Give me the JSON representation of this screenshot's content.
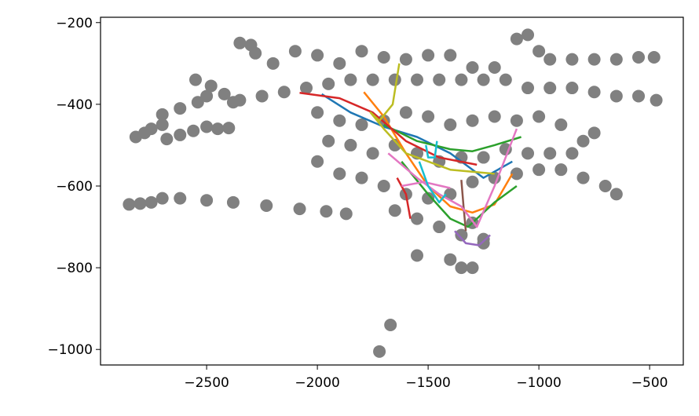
{
  "chart_data": {
    "type": "scatter",
    "xlim": [
      -2979,
      -348
    ],
    "ylim": [
      -1038,
      -187
    ],
    "xticks": [
      {
        "value": -2500,
        "label": "−2500"
      },
      {
        "value": -2000,
        "label": "−2000"
      },
      {
        "value": -1500,
        "label": "−1500"
      },
      {
        "value": -1000,
        "label": "−1000"
      },
      {
        "value": -500,
        "label": "−500"
      }
    ],
    "yticks": [
      {
        "value": -200,
        "label": "−200"
      },
      {
        "value": -400,
        "label": "−400"
      },
      {
        "value": -600,
        "label": "−600"
      },
      {
        "value": -800,
        "label": "−800"
      },
      {
        "value": -1000,
        "label": "−1000"
      }
    ],
    "series": [
      {
        "type": "scatter",
        "color": "#808080",
        "x": [
          -2850,
          -2800,
          -2750,
          -2700,
          -2620,
          -2500,
          -2380,
          -2230,
          -2080,
          -1960,
          -1870,
          -2820,
          -2780,
          -2750,
          -2700,
          -2680,
          -2620,
          -2560,
          -2500,
          -2450,
          -2400,
          -2700,
          -2620,
          -2540,
          -2500,
          -2550,
          -2480,
          -2420,
          -2380,
          -2350,
          -2300,
          -2280,
          -2200,
          -2100,
          -2000,
          -1900,
          -1800,
          -1700,
          -1600,
          -1500,
          -1400,
          -1300,
          -1200,
          -1100,
          -1050,
          -1000,
          -950,
          -850,
          -750,
          -650,
          -550,
          -480,
          -2350,
          -2250,
          -2150,
          -2050,
          -1950,
          -1850,
          -1750,
          -1650,
          -1550,
          -1450,
          -1350,
          -1250,
          -1150,
          -1050,
          -950,
          -850,
          -750,
          -650,
          -550,
          -470,
          -2000,
          -1900,
          -1800,
          -1700,
          -1600,
          -1500,
          -1400,
          -1300,
          -1200,
          -1100,
          -1000,
          -900,
          -1950,
          -1850,
          -1750,
          -1650,
          -1550,
          -1450,
          -1350,
          -1250,
          -1150,
          -1050,
          -950,
          -850,
          -800,
          -750,
          -2000,
          -1900,
          -1800,
          -1700,
          -1600,
          -1500,
          -1400,
          -1300,
          -1200,
          -1100,
          -1000,
          -900,
          -800,
          -700,
          -650,
          -1650,
          -1550,
          -1450,
          -1350,
          -1250,
          -1300,
          -1550,
          -1400,
          -1350,
          -1300,
          -1250,
          -1670,
          -1720
        ],
        "y": [
          -645,
          -643,
          -640,
          -630,
          -630,
          -635,
          -640,
          -648,
          -656,
          -662,
          -668,
          -480,
          -470,
          -460,
          -450,
          -485,
          -475,
          -465,
          -455,
          -460,
          -458,
          -425,
          -410,
          -395,
          -380,
          -340,
          -355,
          -375,
          -395,
          -250,
          -255,
          -275,
          -300,
          -270,
          -280,
          -300,
          -270,
          -285,
          -290,
          -280,
          -280,
          -310,
          -310,
          -240,
          -230,
          -270,
          -290,
          -290,
          -290,
          -290,
          -285,
          -285,
          -390,
          -380,
          -370,
          -360,
          -350,
          -340,
          -340,
          -340,
          -340,
          -340,
          -340,
          -340,
          -340,
          -360,
          -360,
          -360,
          -370,
          -380,
          -380,
          -390,
          -420,
          -440,
          -450,
          -440,
          -420,
          -430,
          -450,
          -440,
          -430,
          -440,
          -430,
          -450,
          -490,
          -500,
          -520,
          -500,
          -520,
          -540,
          -530,
          -530,
          -510,
          -520,
          -520,
          -520,
          -490,
          -470,
          -540,
          -570,
          -580,
          -600,
          -620,
          -630,
          -620,
          -590,
          -580,
          -570,
          -560,
          -560,
          -580,
          -600,
          -620,
          -660,
          -680,
          -700,
          -720,
          -730,
          -690,
          -770,
          -780,
          -800,
          -800,
          -740,
          -940,
          -1005
        ]
      },
      {
        "type": "line",
        "color": "#1f77b4",
        "x": [
          -1980,
          -1850,
          -1700,
          -1550,
          -1400,
          -1250,
          -1120
        ],
        "y": [
          -375,
          -420,
          -455,
          -480,
          -520,
          -580,
          -540
        ]
      },
      {
        "type": "line",
        "color": "#ff7f0e",
        "x": [
          -1790,
          -1700,
          -1600,
          -1500,
          -1400,
          -1300,
          -1200,
          -1120
        ],
        "y": [
          -370,
          -430,
          -520,
          -600,
          -650,
          -665,
          -645,
          -570
        ]
      },
      {
        "type": "line",
        "color": "#2ca02c",
        "x": [
          -1700,
          -1550,
          -1400,
          -1300,
          -1200,
          -1080
        ],
        "y": [
          -450,
          -490,
          -510,
          -515,
          -500,
          -480
        ]
      },
      {
        "type": "line",
        "color": "#2ca02c",
        "x": [
          -1620,
          -1500,
          -1400,
          -1320,
          -1200,
          -1100
        ],
        "y": [
          -540,
          -620,
          -680,
          -700,
          -640,
          -600
        ]
      },
      {
        "type": "line",
        "color": "#d62728",
        "x": [
          -2080,
          -1900,
          -1750,
          -1600,
          -1450,
          -1280
        ],
        "y": [
          -372,
          -385,
          -420,
          -490,
          -530,
          -548
        ]
      },
      {
        "type": "line",
        "color": "#d62728",
        "x": [
          -1640,
          -1600,
          -1580
        ],
        "y": [
          -580,
          -620,
          -680
        ]
      },
      {
        "type": "line",
        "color": "#9467bd",
        "x": [
          -1380,
          -1330,
          -1270,
          -1220
        ],
        "y": [
          -710,
          -740,
          -745,
          -720
        ]
      },
      {
        "type": "line",
        "color": "#8c564b",
        "x": [
          -1350,
          -1340,
          -1330
        ],
        "y": [
          -585,
          -650,
          -710
        ]
      },
      {
        "type": "line",
        "color": "#e377c2",
        "x": [
          -1680,
          -1550,
          -1450,
          -1350,
          -1280,
          -1200,
          -1100
        ],
        "y": [
          -520,
          -580,
          -620,
          -650,
          -700,
          -600,
          -460
        ]
      },
      {
        "type": "line",
        "color": "#e377c2",
        "x": [
          -1620,
          -1520,
          -1440,
          -1400
        ],
        "y": [
          -600,
          -590,
          -600,
          -605
        ]
      },
      {
        "type": "line",
        "color": "#bcbd22",
        "x": [
          -1630,
          -1660,
          -1720,
          -1760,
          -1700,
          -1600,
          -1400,
          -1200
        ],
        "y": [
          -300,
          -400,
          -440,
          -420,
          -460,
          -520,
          -560,
          -570
        ]
      },
      {
        "type": "line",
        "color": "#17becf",
        "x": [
          -1540,
          -1500,
          -1450,
          -1420
        ],
        "y": [
          -540,
          -600,
          -640,
          -620
        ]
      },
      {
        "type": "line",
        "color": "#17becf",
        "x": [
          -1510,
          -1500,
          -1470,
          -1460
        ],
        "y": [
          -500,
          -530,
          -530,
          -490
        ]
      }
    ]
  }
}
